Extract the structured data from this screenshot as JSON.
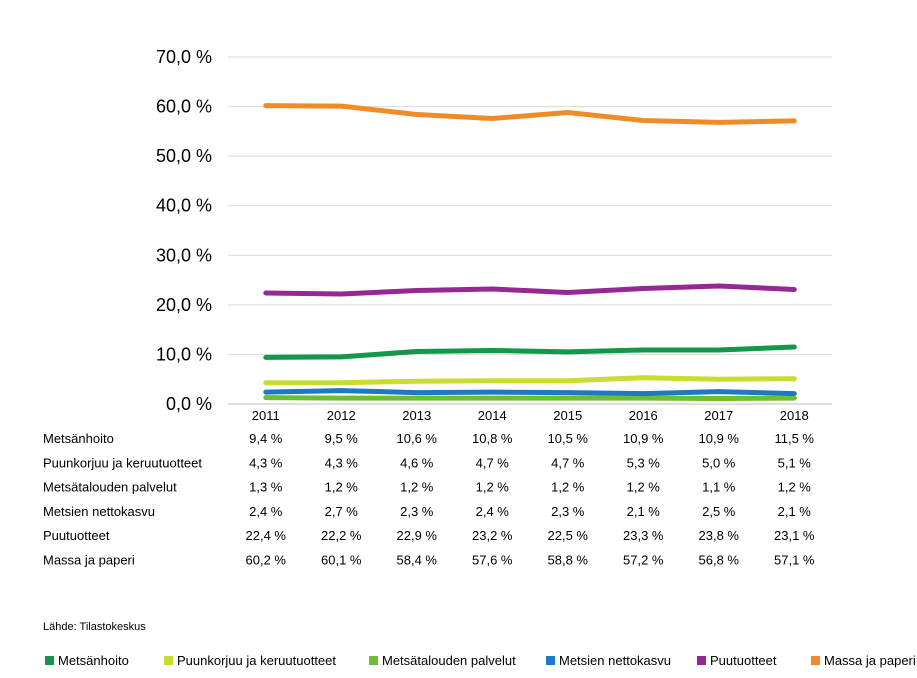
{
  "chart_data": {
    "type": "line",
    "title": "",
    "xlabel": "",
    "ylabel": "",
    "ylim": [
      0,
      70
    ],
    "y_ticks": [
      "0,0 %",
      "10,0 %",
      "20,0 %",
      "30,0 %",
      "40,0 %",
      "50,0 %",
      "60,0 %",
      "70,0 %"
    ],
    "grid": true,
    "legend_position": "bottom",
    "categories": [
      "2011",
      "2012",
      "2013",
      "2014",
      "2015",
      "2016",
      "2017",
      "2018"
    ],
    "series": [
      {
        "name": "Metsänhoito",
        "color": "#14964B",
        "values": [
          9.4,
          9.5,
          10.6,
          10.8,
          10.5,
          10.9,
          10.9,
          11.5
        ],
        "labels": [
          "9,4 %",
          "9,5 %",
          "10,6 %",
          "10,8 %",
          "10,5 %",
          "10,9 %",
          "10,9 %",
          "11,5 %"
        ]
      },
      {
        "name": "Puunkorjuu ja keruutuotteet",
        "color": "#C8DC32",
        "values": [
          4.3,
          4.3,
          4.6,
          4.7,
          4.7,
          5.3,
          5.0,
          5.1
        ],
        "labels": [
          "4,3 %",
          "4,3 %",
          "4,6 %",
          "4,7 %",
          "4,7 %",
          "5,3 %",
          "5,0 %",
          "5,1 %"
        ]
      },
      {
        "name": "Metsätalouden palvelut",
        "color": "#6EBE32",
        "values": [
          1.3,
          1.2,
          1.2,
          1.2,
          1.2,
          1.2,
          1.1,
          1.2
        ],
        "labels": [
          "1,3 %",
          "1,2 %",
          "1,2 %",
          "1,2 %",
          "1,2 %",
          "1,2 %",
          "1,1 %",
          "1,2 %"
        ]
      },
      {
        "name": "Metsien nettokasvu",
        "color": "#1E78C8",
        "values": [
          2.4,
          2.7,
          2.3,
          2.4,
          2.3,
          2.1,
          2.5,
          2.1
        ],
        "labels": [
          "2,4 %",
          "2,7 %",
          "2,3 %",
          "2,4 %",
          "2,3 %",
          "2,1 %",
          "2,5 %",
          "2,1 %"
        ]
      },
      {
        "name": "Puutuotteet",
        "color": "#962896",
        "values": [
          22.4,
          22.2,
          22.9,
          23.2,
          22.5,
          23.3,
          23.8,
          23.1
        ],
        "labels": [
          "22,4 %",
          "22,2 %",
          "22,9 %",
          "23,2 %",
          "22,5 %",
          "23,3 %",
          "23,8 %",
          "23,1 %"
        ]
      },
      {
        "name": "Massa ja paperi",
        "color": "#F08C28",
        "values": [
          60.2,
          60.1,
          58.4,
          57.6,
          58.8,
          57.2,
          56.8,
          57.1
        ],
        "labels": [
          "60,2 %",
          "60,1 %",
          "58,4 %",
          "57,6 %",
          "58,8 %",
          "57,2 %",
          "56,8 %",
          "57,1 %"
        ]
      }
    ]
  },
  "source_text": "Lähde: Tilastokeskus"
}
